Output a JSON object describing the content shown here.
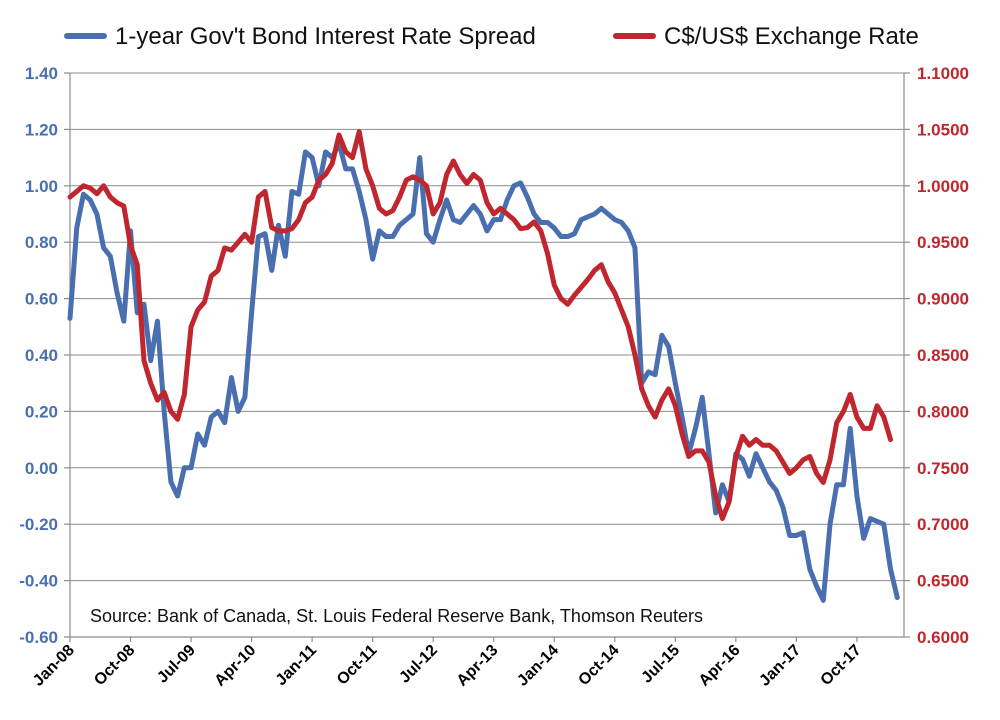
{
  "chart_data": {
    "type": "line",
    "title": "",
    "source": "Source: Bank of Canada, St. Louis Federal Reserve Bank, Thomson Reuters",
    "x_tick_labels": [
      "Jan-08",
      "Oct-08",
      "Jul-09",
      "Apr-10",
      "Jan-11",
      "Oct-11",
      "Jul-12",
      "Apr-13",
      "Jan-14",
      "Oct-14",
      "Jul-15",
      "Apr-16",
      "Jan-17",
      "Oct-17"
    ],
    "x_range_months": [
      0,
      124
    ],
    "legend": [
      "1-year Gov't Bond Interest Rate Spread",
      "C$/US$ Exchange Rate"
    ],
    "left_axis": {
      "ylim": [
        -0.6,
        1.4
      ],
      "ticks": [
        -0.6,
        -0.4,
        -0.2,
        0.0,
        0.2,
        0.4,
        0.6,
        0.8,
        1.0,
        1.2,
        1.4
      ],
      "tick_labels": [
        "-0.60",
        "-0.40",
        "-0.20",
        "0.00",
        "0.20",
        "0.40",
        "0.60",
        "0.80",
        "1.00",
        "1.20",
        "1.40"
      ]
    },
    "right_axis": {
      "ylim": [
        0.6,
        1.1
      ],
      "ticks": [
        0.6,
        0.65,
        0.7,
        0.75,
        0.8,
        0.85,
        0.9,
        0.95,
        1.0,
        1.05,
        1.1
      ],
      "tick_labels": [
        "0.6000",
        "0.6500",
        "0.7000",
        "0.7500",
        "0.8000",
        "0.8500",
        "0.9000",
        "0.9500",
        "1.0000",
        "1.0500",
        "1.1000"
      ]
    },
    "series": [
      {
        "name": "1-year Gov't Bond Interest Rate Spread",
        "axis": "left",
        "color": "#4a6fb0",
        "points": [
          [
            0,
            0.53
          ],
          [
            1,
            0.85
          ],
          [
            2,
            0.97
          ],
          [
            3,
            0.95
          ],
          [
            4,
            0.9
          ],
          [
            5,
            0.78
          ],
          [
            6,
            0.75
          ],
          [
            7,
            0.62
          ],
          [
            8,
            0.52
          ],
          [
            9,
            0.84
          ],
          [
            10,
            0.55
          ],
          [
            11,
            0.58
          ],
          [
            12,
            0.38
          ],
          [
            13,
            0.52
          ],
          [
            14,
            0.2
          ],
          [
            15,
            -0.05
          ],
          [
            16,
            -0.1
          ],
          [
            17,
            0.0
          ],
          [
            18,
            0.0
          ],
          [
            19,
            0.12
          ],
          [
            20,
            0.08
          ],
          [
            21,
            0.18
          ],
          [
            22,
            0.2
          ],
          [
            23,
            0.16
          ],
          [
            24,
            0.32
          ],
          [
            25,
            0.2
          ],
          [
            26,
            0.25
          ],
          [
            27,
            0.55
          ],
          [
            28,
            0.82
          ],
          [
            29,
            0.83
          ],
          [
            30,
            0.7
          ],
          [
            31,
            0.86
          ],
          [
            32,
            0.75
          ],
          [
            33,
            0.98
          ],
          [
            34,
            0.97
          ],
          [
            35,
            1.12
          ],
          [
            36,
            1.1
          ],
          [
            37,
            1.0
          ],
          [
            38,
            1.12
          ],
          [
            39,
            1.1
          ],
          [
            40,
            1.15
          ],
          [
            41,
            1.06
          ],
          [
            42,
            1.06
          ],
          [
            43,
            0.98
          ],
          [
            44,
            0.88
          ],
          [
            45,
            0.74
          ],
          [
            46,
            0.84
          ],
          [
            47,
            0.82
          ],
          [
            48,
            0.82
          ],
          [
            49,
            0.86
          ],
          [
            50,
            0.88
          ],
          [
            51,
            0.9
          ],
          [
            52,
            1.1
          ],
          [
            53,
            0.83
          ],
          [
            54,
            0.8
          ],
          [
            55,
            0.88
          ],
          [
            56,
            0.95
          ],
          [
            57,
            0.88
          ],
          [
            58,
            0.87
          ],
          [
            59,
            0.9
          ],
          [
            60,
            0.93
          ],
          [
            61,
            0.9
          ],
          [
            62,
            0.84
          ],
          [
            63,
            0.88
          ],
          [
            64,
            0.88
          ],
          [
            65,
            0.95
          ],
          [
            66,
            1.0
          ],
          [
            67,
            1.01
          ],
          [
            68,
            0.96
          ],
          [
            69,
            0.9
          ],
          [
            70,
            0.87
          ],
          [
            71,
            0.87
          ],
          [
            72,
            0.85
          ],
          [
            73,
            0.82
          ],
          [
            74,
            0.82
          ],
          [
            75,
            0.83
          ],
          [
            76,
            0.88
          ],
          [
            77,
            0.89
          ],
          [
            78,
            0.9
          ],
          [
            79,
            0.92
          ],
          [
            80,
            0.9
          ],
          [
            81,
            0.88
          ],
          [
            82,
            0.87
          ],
          [
            83,
            0.84
          ],
          [
            84,
            0.78
          ],
          [
            85,
            0.3
          ],
          [
            86,
            0.34
          ],
          [
            87,
            0.33
          ],
          [
            88,
            0.47
          ],
          [
            89,
            0.43
          ],
          [
            90,
            0.3
          ],
          [
            91,
            0.18
          ],
          [
            92,
            0.05
          ],
          [
            93,
            0.14
          ],
          [
            94,
            0.25
          ],
          [
            95,
            0.05
          ],
          [
            96,
            -0.16
          ],
          [
            97,
            -0.06
          ],
          [
            98,
            -0.12
          ],
          [
            99,
            0.05
          ],
          [
            100,
            0.03
          ],
          [
            101,
            -0.03
          ],
          [
            102,
            0.05
          ],
          [
            103,
            0.0
          ],
          [
            104,
            -0.05
          ],
          [
            105,
            -0.08
          ],
          [
            106,
            -0.14
          ],
          [
            107,
            -0.24
          ],
          [
            108,
            -0.24
          ],
          [
            109,
            -0.23
          ],
          [
            110,
            -0.36
          ],
          [
            111,
            -0.42
          ],
          [
            112,
            -0.47
          ],
          [
            113,
            -0.2
          ],
          [
            114,
            -0.06
          ],
          [
            115,
            -0.06
          ],
          [
            116,
            0.14
          ],
          [
            117,
            -0.1
          ],
          [
            118,
            -0.25
          ],
          [
            119,
            -0.18
          ],
          [
            120,
            -0.19
          ],
          [
            121,
            -0.2
          ],
          [
            122,
            -0.36
          ],
          [
            123,
            -0.46
          ]
        ]
      },
      {
        "name": "C$/US$ Exchange Rate",
        "axis": "right",
        "color": "#c0262d",
        "points": [
          [
            0,
            0.99
          ],
          [
            1,
            0.995
          ],
          [
            2,
            1.0
          ],
          [
            3,
            0.998
          ],
          [
            4,
            0.993
          ],
          [
            5,
            1.0
          ],
          [
            6,
            0.99
          ],
          [
            7,
            0.985
          ],
          [
            8,
            0.982
          ],
          [
            9,
            0.947
          ],
          [
            10,
            0.93
          ],
          [
            11,
            0.845
          ],
          [
            12,
            0.825
          ],
          [
            13,
            0.81
          ],
          [
            14,
            0.817
          ],
          [
            15,
            0.8
          ],
          [
            16,
            0.793
          ],
          [
            17,
            0.815
          ],
          [
            18,
            0.875
          ],
          [
            19,
            0.89
          ],
          [
            20,
            0.897
          ],
          [
            21,
            0.92
          ],
          [
            22,
            0.925
          ],
          [
            23,
            0.945
          ],
          [
            24,
            0.943
          ],
          [
            25,
            0.95
          ],
          [
            26,
            0.957
          ],
          [
            27,
            0.95
          ],
          [
            28,
            0.99
          ],
          [
            29,
            0.995
          ],
          [
            30,
            0.963
          ],
          [
            31,
            0.96
          ],
          [
            32,
            0.96
          ],
          [
            33,
            0.962
          ],
          [
            34,
            0.97
          ],
          [
            35,
            0.985
          ],
          [
            36,
            0.99
          ],
          [
            37,
            1.005
          ],
          [
            38,
            1.01
          ],
          [
            39,
            1.02
          ],
          [
            40,
            1.045
          ],
          [
            41,
            1.03
          ],
          [
            42,
            1.025
          ],
          [
            43,
            1.048
          ],
          [
            44,
            1.015
          ],
          [
            45,
            1.0
          ],
          [
            46,
            0.98
          ],
          [
            47,
            0.975
          ],
          [
            48,
            0.978
          ],
          [
            49,
            0.99
          ],
          [
            50,
            1.005
          ],
          [
            51,
            1.008
          ],
          [
            52,
            1.005
          ],
          [
            53,
            1.0
          ],
          [
            54,
            0.975
          ],
          [
            55,
            0.985
          ],
          [
            56,
            1.01
          ],
          [
            57,
            1.022
          ],
          [
            58,
            1.01
          ],
          [
            59,
            1.002
          ],
          [
            60,
            1.01
          ],
          [
            61,
            1.005
          ],
          [
            62,
            0.985
          ],
          [
            63,
            0.975
          ],
          [
            64,
            0.98
          ],
          [
            65,
            0.975
          ],
          [
            66,
            0.97
          ],
          [
            67,
            0.962
          ],
          [
            68,
            0.963
          ],
          [
            69,
            0.968
          ],
          [
            70,
            0.96
          ],
          [
            71,
            0.94
          ],
          [
            72,
            0.912
          ],
          [
            73,
            0.9
          ],
          [
            74,
            0.895
          ],
          [
            75,
            0.903
          ],
          [
            76,
            0.91
          ],
          [
            77,
            0.917
          ],
          [
            78,
            0.925
          ],
          [
            79,
            0.93
          ],
          [
            80,
            0.915
          ],
          [
            81,
            0.905
          ],
          [
            82,
            0.89
          ],
          [
            83,
            0.875
          ],
          [
            84,
            0.85
          ],
          [
            85,
            0.82
          ],
          [
            86,
            0.805
          ],
          [
            87,
            0.795
          ],
          [
            88,
            0.81
          ],
          [
            89,
            0.82
          ],
          [
            90,
            0.805
          ],
          [
            91,
            0.78
          ],
          [
            92,
            0.76
          ],
          [
            93,
            0.765
          ],
          [
            94,
            0.765
          ],
          [
            95,
            0.755
          ],
          [
            96,
            0.725
          ],
          [
            97,
            0.705
          ],
          [
            98,
            0.72
          ],
          [
            99,
            0.76
          ],
          [
            100,
            0.778
          ],
          [
            101,
            0.77
          ],
          [
            102,
            0.775
          ],
          [
            103,
            0.77
          ],
          [
            104,
            0.77
          ],
          [
            105,
            0.765
          ],
          [
            106,
            0.755
          ],
          [
            107,
            0.745
          ],
          [
            108,
            0.75
          ],
          [
            109,
            0.757
          ],
          [
            110,
            0.76
          ],
          [
            111,
            0.745
          ],
          [
            112,
            0.737
          ],
          [
            113,
            0.757
          ],
          [
            114,
            0.79
          ],
          [
            115,
            0.8
          ],
          [
            116,
            0.815
          ],
          [
            117,
            0.795
          ],
          [
            118,
            0.785
          ],
          [
            119,
            0.785
          ],
          [
            120,
            0.805
          ],
          [
            121,
            0.795
          ],
          [
            122,
            0.775
          ]
        ]
      }
    ]
  }
}
